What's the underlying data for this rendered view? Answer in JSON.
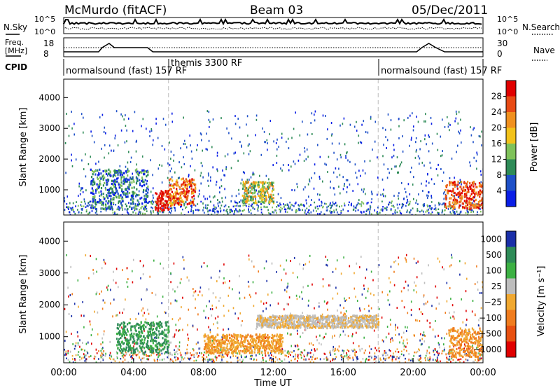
{
  "header": {
    "title": "McMurdo (fitACF)",
    "beam": "Beam 03",
    "date": "05/Dec/2011"
  },
  "summary_panels": {
    "nsky": {
      "label": "N.Sky",
      "ticks": [
        "10^5",
        "10^0"
      ]
    },
    "nsearch": {
      "label": "N.Search",
      "ticks": [
        "10^5",
        "10^0"
      ]
    },
    "freq": {
      "label_line1": "Freq.",
      "label_line2": "[MHz]",
      "ticks": [
        "18",
        "8"
      ]
    },
    "nave": {
      "label": "Nave",
      "ticks": [
        "30",
        "0"
      ]
    },
    "cpid": {
      "label": "CPID",
      "segments": [
        {
          "text": "normalsound (fast) 157 RF",
          "start_hour": 0
        },
        {
          "text": "themis 3300 RF",
          "start_hour": 6
        },
        {
          "text": "normalsound (fast) 157 RF",
          "start_hour": 18
        }
      ]
    }
  },
  "chart_data": [
    {
      "type": "heatmap",
      "panel": "power",
      "ylabel": "Slant Range [km]",
      "ylim": [
        180,
        4600
      ],
      "yticks": [
        "1000",
        "2000",
        "3000",
        "4000"
      ],
      "xlim_hours": [
        0,
        24
      ],
      "colorbar": {
        "label": "Power [dB]",
        "ticks": [
          "4",
          "8",
          "12",
          "16",
          "20",
          "24",
          "28"
        ],
        "colors": [
          "#0a1ee6",
          "#1e50c8",
          "#2e8b57",
          "#7fc25a",
          "#f2c21a",
          "#f0901e",
          "#e84a14",
          "#e00000"
        ]
      },
      "echo_regions": [
        {
          "hours": [
            1.5,
            4.8
          ],
          "range_km": [
            400,
            1700
          ],
          "level": "4-12 dB"
        },
        {
          "hours": [
            5.2,
            6.0
          ],
          "range_km": [
            350,
            1000
          ],
          "level": "28+ dB"
        },
        {
          "hours": [
            6.0,
            7.5
          ],
          "range_km": [
            500,
            1400
          ],
          "level": "20-28 dB"
        },
        {
          "hours": [
            10.2,
            12.0
          ],
          "range_km": [
            600,
            1300
          ],
          "level": "12-24 dB"
        },
        {
          "hours": [
            21.8,
            24.0
          ],
          "range_km": [
            400,
            1300
          ],
          "level": "20-28 dB"
        }
      ]
    },
    {
      "type": "heatmap",
      "panel": "velocity",
      "ylabel": "Slant Range [km]",
      "ylim": [
        180,
        4600
      ],
      "yticks": [
        "1000",
        "2000",
        "3000",
        "4000"
      ],
      "xlabel": "Time UT",
      "xlim_hours": [
        0,
        24
      ],
      "xticks": [
        "00:00",
        "04:00",
        "08:00",
        "12:00",
        "16:00",
        "20:00",
        "00:00"
      ],
      "colorbar": {
        "label": "Velocity [m s⁻¹]",
        "ticks": [
          "1000",
          "500",
          "100",
          "25",
          "−25",
          "−100",
          "−500",
          "−1000"
        ],
        "colors": [
          "#1a2fa8",
          "#2e8b57",
          "#3cb043",
          "#bdbdbd",
          "#f0a830",
          "#f07c1e",
          "#e85010",
          "#e00000"
        ]
      },
      "echo_regions": [
        {
          "hours": [
            3.0,
            6.0
          ],
          "range_km": [
            500,
            1500
          ],
          "level": "+100 to +500 m/s"
        },
        {
          "hours": [
            8.0,
            12.5
          ],
          "range_km": [
            500,
            1100
          ],
          "level": "-100 to -500 m/s"
        },
        {
          "hours": [
            11.0,
            18.0
          ],
          "range_km": [
            1300,
            1700
          ],
          "level": "-25 to +25 m/s"
        },
        {
          "hours": [
            22.0,
            24.0
          ],
          "range_km": [
            400,
            1300
          ],
          "level": "-100 to -500 m/s"
        }
      ]
    }
  ]
}
